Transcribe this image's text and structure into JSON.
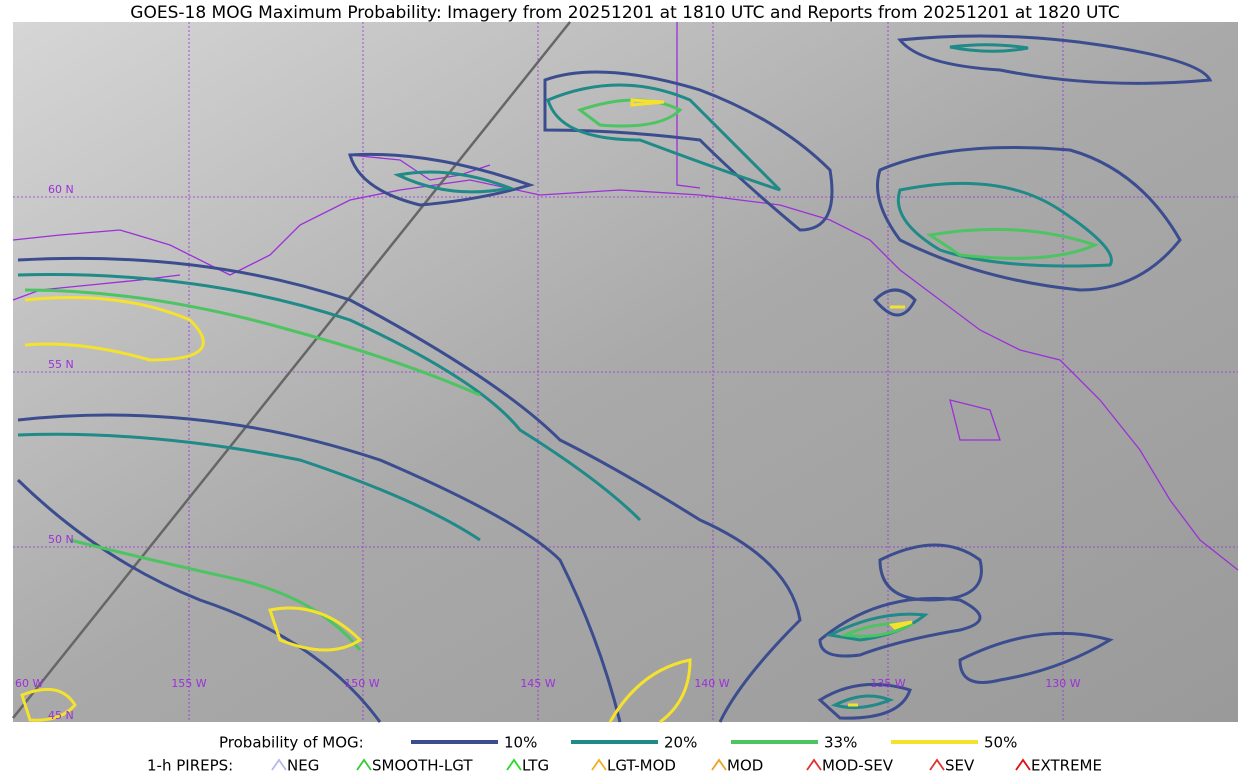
{
  "title": "GOES-18 MOG Maximum Probability: Imagery from 20251201 at 1810 UTC and Reports from 20251201 at 1820 UTC",
  "map": {
    "lat_labels": [
      "60 N",
      "55 N",
      "50 N",
      "45 N"
    ],
    "lon_labels": [
      "60 W",
      "155 W",
      "150 W",
      "145 W",
      "140 W",
      "135 W",
      "130 W"
    ]
  },
  "legend": {
    "mog": {
      "title": "Probability of MOG:",
      "items": [
        {
          "label": "10%",
          "color": "#3b4d8f"
        },
        {
          "label": "20%",
          "color": "#1f8a87"
        },
        {
          "label": "33%",
          "color": "#4cc462"
        },
        {
          "label": "50%",
          "color": "#f5e22c"
        }
      ]
    },
    "pireps": {
      "title": "1-h PIREPS:",
      "items": [
        {
          "label": "NEG",
          "color": "#b8b8f0"
        },
        {
          "label": "SMOOTH-LGT",
          "color": "#33cc33"
        },
        {
          "label": "LTG",
          "color": "#22dd22"
        },
        {
          "label": "LGT-MOD",
          "color": "#f0b020"
        },
        {
          "label": "MOD",
          "color": "#f0a020"
        },
        {
          "label": "MOD-SEV",
          "color": "#e03030"
        },
        {
          "label": "SEV",
          "color": "#e03030"
        },
        {
          "label": "EXTREME",
          "color": "#e01010"
        }
      ]
    }
  }
}
